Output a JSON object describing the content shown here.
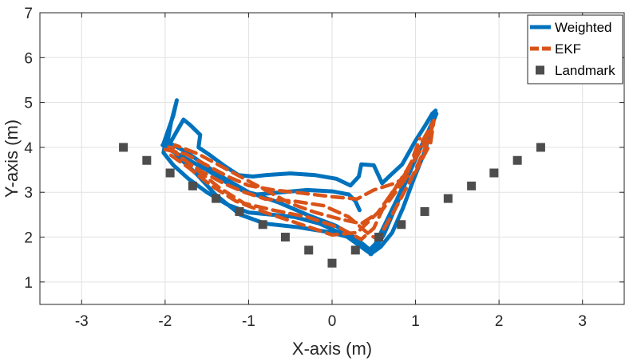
{
  "chart_data": {
    "type": "line",
    "title": "",
    "xlabel": "X-axis (m)",
    "ylabel": "Y-axis (m)",
    "xlim": [
      -3.5,
      3.5
    ],
    "ylim": [
      0.5,
      7
    ],
    "xticks": [
      -3,
      -2,
      -1,
      0,
      1,
      2,
      3
    ],
    "yticks": [
      1,
      2,
      3,
      4,
      5,
      6,
      7
    ],
    "xtick_labels": [
      "-3",
      "-2",
      "-1",
      "0",
      "1",
      "2",
      "3"
    ],
    "ytick_labels": [
      "1",
      "2",
      "3",
      "4",
      "5",
      "6",
      "7"
    ],
    "grid": true,
    "legend_position": "top-right",
    "series": [
      {
        "name": "Weighted",
        "kind": "line",
        "style": "solid",
        "color": "#0072BD",
        "x": [
          -1.98,
          -1.93,
          -1.86,
          -1.9,
          -2.02,
          -1.97,
          -1.78,
          -1.7,
          -1.58,
          -1.6,
          -1.48,
          -1.3,
          -1.12,
          -0.95,
          -0.8,
          -0.5,
          -0.2,
          0.05,
          0.22,
          0.32,
          0.35,
          0.5,
          0.6,
          0.7,
          0.84,
          1.0,
          1.12,
          1.2,
          1.24,
          1.18,
          1.12,
          0.98,
          0.85,
          0.72,
          0.58,
          0.46,
          0.4,
          0.3,
          0.0,
          -0.4,
          -0.8,
          -1.1,
          -1.4,
          -1.62,
          -1.82,
          -1.92,
          -2.0,
          -2.02,
          -1.9,
          -1.72,
          -1.5,
          -1.25,
          -1.0,
          -0.72,
          -0.45,
          -0.15,
          0.15,
          0.35,
          0.47,
          0.5,
          0.62,
          0.78,
          0.92,
          1.05,
          1.15,
          1.22,
          1.25,
          1.15,
          1.02,
          0.9,
          0.78,
          0.65,
          0.52,
          0.45,
          0.3,
          0.05,
          -0.3,
          -0.65,
          -1.0,
          -1.28,
          -1.52,
          -1.75,
          -1.95,
          -2.03,
          -1.95,
          -1.75,
          -1.5,
          -1.25,
          -1.05,
          -0.9,
          -0.6,
          -0.3,
          0.0,
          0.2,
          0.28,
          0.33
        ],
        "y": [
          4.02,
          4.55,
          5.05,
          4.72,
          4.08,
          4.0,
          4.62,
          4.5,
          4.28,
          4.0,
          3.85,
          3.6,
          3.38,
          3.35,
          3.38,
          3.42,
          3.38,
          3.3,
          3.15,
          3.35,
          3.62,
          3.6,
          3.2,
          3.38,
          3.62,
          4.15,
          4.5,
          4.75,
          4.82,
          4.4,
          3.95,
          3.3,
          2.65,
          2.1,
          1.78,
          1.62,
          1.8,
          1.95,
          2.1,
          2.22,
          2.3,
          2.5,
          2.95,
          3.4,
          3.75,
          3.95,
          4.08,
          3.88,
          3.6,
          3.3,
          3.0,
          2.72,
          2.55,
          2.5,
          2.45,
          2.3,
          2.05,
          1.78,
          1.62,
          1.7,
          2.05,
          2.75,
          3.4,
          3.95,
          4.35,
          4.65,
          4.75,
          4.3,
          3.85,
          3.35,
          2.85,
          2.35,
          1.85,
          1.72,
          1.95,
          2.25,
          2.5,
          2.78,
          3.0,
          3.3,
          3.6,
          3.9,
          4.1,
          4.05,
          3.95,
          3.75,
          3.5,
          3.2,
          3.02,
          2.95,
          3.0,
          3.05,
          3.02,
          2.95,
          2.8,
          2.6
        ]
      },
      {
        "name": "EKF",
        "kind": "line",
        "style": "dashed",
        "color": "#D95319",
        "x": [
          -2.0,
          -1.75,
          -1.5,
          -1.25,
          -1.0,
          -0.7,
          -0.35,
          0.0,
          0.3,
          0.5,
          0.75,
          1.0,
          1.18,
          1.22,
          1.1,
          0.9,
          0.65,
          0.5,
          0.35,
          0.1,
          -0.3,
          -0.7,
          -1.05,
          -1.35,
          -1.62,
          -1.85,
          -1.98,
          -1.8,
          -1.55,
          -1.3,
          -1.05,
          -0.8,
          -0.45,
          -0.1,
          0.2,
          0.45,
          0.55,
          0.72,
          0.95,
          1.12,
          1.2,
          1.05,
          0.8,
          0.55,
          0.3,
          0.0,
          -0.4,
          -0.8,
          -1.15,
          -1.45,
          -1.72,
          -1.95,
          -1.88,
          -1.6,
          -1.3,
          -1.0,
          -0.75,
          -0.5,
          -0.2,
          0.1,
          0.35,
          0.6,
          0.88,
          1.05
        ],
        "y": [
          3.95,
          3.85,
          3.6,
          3.35,
          3.15,
          3.05,
          2.98,
          2.9,
          2.85,
          3.05,
          3.2,
          3.45,
          4.1,
          4.6,
          4.2,
          3.5,
          2.8,
          2.2,
          1.95,
          2.2,
          2.45,
          2.6,
          2.75,
          3.1,
          3.5,
          3.85,
          4.05,
          3.75,
          3.45,
          3.2,
          3.0,
          2.85,
          2.8,
          2.7,
          2.45,
          2.05,
          1.95,
          2.5,
          3.3,
          4.0,
          4.45,
          3.9,
          3.2,
          2.55,
          2.1,
          2.05,
          2.3,
          2.55,
          2.8,
          3.15,
          3.55,
          3.85,
          4.05,
          3.85,
          3.55,
          3.25,
          3.0,
          2.75,
          2.55,
          2.4,
          2.3,
          2.6,
          3.3,
          4.2
        ]
      },
      {
        "name": "Landmark",
        "kind": "markers",
        "color": "#4d4d4d",
        "x": [
          -2.5,
          -2.22,
          -1.94,
          -1.67,
          -1.39,
          -1.11,
          -0.83,
          -0.56,
          -0.28,
          0.0,
          0.28,
          0.56,
          0.83,
          1.11,
          1.39,
          1.67,
          1.94,
          2.22,
          2.5
        ],
        "y": [
          4.0,
          3.71,
          3.43,
          3.14,
          2.86,
          2.57,
          2.28,
          2.0,
          1.71,
          1.42,
          1.71,
          2.0,
          2.28,
          2.57,
          2.86,
          3.14,
          3.43,
          3.71,
          4.0
        ]
      }
    ]
  }
}
